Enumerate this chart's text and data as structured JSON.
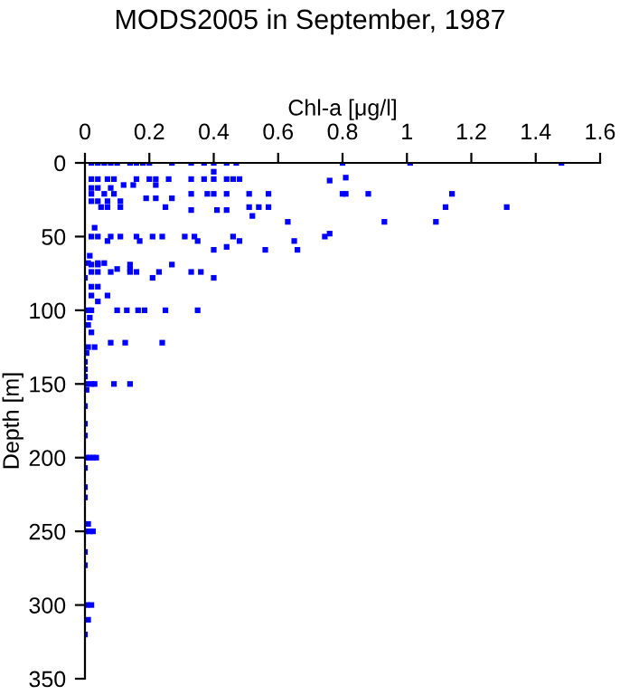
{
  "chart_data": {
    "type": "scatter",
    "title": "MODS2005 in September, 1987",
    "xlabel": "Chl-a [μg/l]",
    "ylabel": "Depth [m]",
    "xlim": [
      0,
      1.6
    ],
    "xticks": [
      0,
      0.2,
      0.4,
      0.6,
      0.8,
      1,
      1.2,
      1.4,
      1.6
    ],
    "ylim": [
      350,
      0
    ],
    "yticks": [
      0,
      50,
      100,
      150,
      200,
      250,
      300,
      350
    ],
    "grid": false,
    "marker": "square",
    "series": [
      {
        "color": "#0000ff",
        "x": [
          0.02,
          0.04,
          0.06,
          0.08,
          0.1,
          0.14,
          0.16,
          0.18,
          0.2,
          0.27,
          0.33,
          0.37,
          0.4,
          0.44,
          0.47,
          0.8,
          1.01,
          1.48,
          0.4,
          0.02,
          0.04,
          0.07,
          0.09,
          0.16,
          0.2,
          0.22,
          0.26,
          0.33,
          0.37,
          0.4,
          0.44,
          0.46,
          0.48,
          0.76,
          0.81,
          0.12,
          0.15,
          0.22,
          0.02,
          0.04,
          0.08,
          0.02,
          0.06,
          0.09,
          0.33,
          0.38,
          0.4,
          0.44,
          0.51,
          0.57,
          0.8,
          0.81,
          0.88,
          1.14,
          0.19,
          0.22,
          0.27,
          0.02,
          0.04,
          0.07,
          0.11,
          0.05,
          0.07,
          0.11,
          0.25,
          0.51,
          0.54,
          0.57,
          1.12,
          1.31,
          0.33,
          0.41,
          0.44,
          0.52,
          0.63,
          0.93,
          1.09,
          0.03,
          0.76,
          0.02,
          0.04,
          0.08,
          0.11,
          0.16,
          0.21,
          0.24,
          0.31,
          0.34,
          0.46,
          0.745,
          0.07,
          0.17,
          0.35,
          0.48,
          0.65,
          0.44,
          0.4,
          0.56,
          0.66,
          0.015,
          0.02,
          0.04,
          0.14,
          0.27,
          0.01,
          0.04,
          0.06,
          0.1,
          0.14,
          0.02,
          0.04,
          0.08,
          0.14,
          0.16,
          0.23,
          0.33,
          0.36,
          0.0,
          0.21,
          0.4,
          0.02,
          0.04,
          0.02,
          0.07,
          0.04,
          0.01,
          0.02,
          0.1,
          0.13,
          0.165,
          0.185,
          0.25,
          0.35,
          0.015,
          0.01,
          0.02,
          0.08,
          0.125,
          0.24,
          0.01,
          0.03,
          0.005,
          0.0,
          0.0,
          0.0,
          0.005,
          0.02,
          0.03,
          0.09,
          0.14,
          0.005,
          0.0,
          0.0,
          0.0,
          0.005,
          0.015,
          0.025,
          0.035,
          0.0,
          0.0,
          0.0,
          0.01,
          0.0,
          0.015,
          0.025,
          0.0,
          0.0,
          0.005,
          0.02,
          0.01,
          0.0
        ],
        "values": [
          0,
          0,
          0,
          0,
          0,
          0,
          0,
          0,
          0,
          0,
          0,
          0,
          0,
          0,
          0,
          0,
          0,
          0,
          6,
          11,
          11,
          11,
          11,
          11,
          11,
          11,
          11,
          11,
          11,
          11,
          11,
          11,
          11,
          12,
          10,
          15,
          15,
          15,
          17,
          17,
          17,
          21,
          21,
          21,
          21,
          21,
          21,
          21,
          21,
          21,
          21,
          21,
          21,
          21,
          24,
          24,
          24,
          26,
          26,
          26,
          26,
          30,
          30,
          30,
          30,
          30,
          30,
          30,
          30,
          30,
          32,
          32,
          32,
          36,
          40,
          40,
          40,
          44,
          48,
          50,
          50,
          50,
          50,
          50,
          50,
          50,
          50,
          50,
          50,
          50,
          53,
          53,
          53,
          53,
          53,
          57,
          59,
          59,
          59,
          63,
          69,
          69,
          69,
          69,
          68,
          68,
          68,
          72,
          72,
          74,
          74,
          74,
          74,
          74,
          74,
          74,
          74,
          78,
          78,
          78,
          84,
          84,
          90,
          90,
          94,
          100,
          100,
          100,
          100,
          100,
          100,
          100,
          100,
          105,
          110,
          115,
          122,
          122,
          122,
          125,
          125,
          129,
          135,
          140,
          145,
          150,
          150,
          150,
          150,
          150,
          154,
          165,
          177,
          185,
          200,
          200,
          200,
          200,
          207,
          220,
          227,
          245,
          250,
          250,
          250,
          264,
          273,
          300,
          300,
          310,
          320
        ]
      }
    ]
  }
}
